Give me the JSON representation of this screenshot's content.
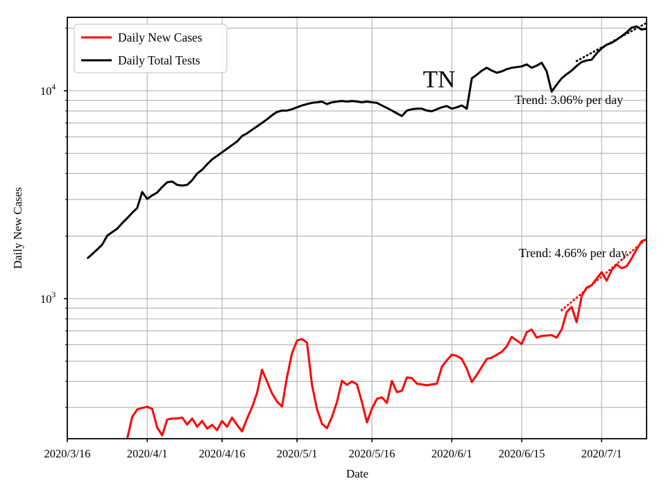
{
  "chart_data": {
    "type": "line",
    "title": "TN",
    "xlabel": "Date",
    "ylabel": "Daily New Cases",
    "x_scale": "date",
    "y_scale": "log",
    "xlim": [
      "2020/3/16",
      "2020/7/10"
    ],
    "ylim": [
      212,
      22560
    ],
    "grid": true,
    "grid_color": "#b0b0b0",
    "y_gridlines": [
      300,
      400,
      500,
      600,
      700,
      800,
      900,
      1000,
      2000,
      3000,
      4000,
      5000,
      6000,
      7000,
      8000,
      9000,
      10000,
      20000
    ],
    "y_major_ticks": [
      {
        "label": "10⁴",
        "base": "10",
        "exp": "4",
        "value": 10000
      },
      {
        "label": "10³",
        "base": "10",
        "exp": "3",
        "value": 1000
      }
    ],
    "x_ticks": [
      {
        "label": "2020/3/16",
        "value": "2020/3/16"
      },
      {
        "label": "2020/4/1",
        "value": "2020/4/1"
      },
      {
        "label": "2020/4/16",
        "value": "2020/4/16"
      },
      {
        "label": "2020/5/1",
        "value": "2020/5/1"
      },
      {
        "label": "2020/5/16",
        "value": "2020/5/16"
      },
      {
        "label": "2020/6/1",
        "value": "2020/6/1"
      },
      {
        "label": "2020/6/15",
        "value": "2020/6/15"
      },
      {
        "label": "2020/7/1",
        "value": "2020/7/1"
      }
    ],
    "legend": {
      "position": "upper left"
    },
    "annotations": [
      {
        "id": "tests-trend-label",
        "text": "Trend: 3.06% per day",
        "color": "#000000"
      },
      {
        "id": "cases-trend-label",
        "text": "Trend: 4.66% per day",
        "color": "#000000"
      }
    ],
    "series": [
      {
        "name": "Daily New Cases",
        "color": "#ff0000",
        "linestyle": "solid",
        "start_date": "2020/3/28",
        "values": [
          212,
          270,
          293,
          298,
          302,
          295,
          240,
          220,
          262,
          265,
          265,
          268,
          248,
          265,
          242,
          258,
          237,
          247,
          233,
          258,
          242,
          268,
          247,
          230,
          265,
          300,
          352,
          455,
          400,
          350,
          320,
          303,
          420,
          546,
          628,
          640,
          615,
          385,
          295,
          250,
          238,
          270,
          318,
          403,
          385,
          400,
          387,
          318,
          254,
          296,
          330,
          335,
          315,
          402,
          355,
          360,
          418,
          415,
          390,
          387,
          383,
          387,
          390,
          470,
          505,
          538,
          530,
          513,
          460,
          397,
          430,
          470,
          513,
          520,
          537,
          555,
          590,
          655,
          630,
          605,
          690,
          710,
          650,
          662,
          665,
          668,
          650,
          710,
          862,
          912,
          770,
          1030,
          1130,
          1160,
          1250,
          1340,
          1220,
          1370,
          1460,
          1400,
          1430,
          1560,
          1725,
          1890,
          1930
        ]
      },
      {
        "name": "Daily Total Tests",
        "color": "#000000",
        "linestyle": "solid",
        "start_date": "2020/3/20",
        "values": [
          1560,
          1640,
          1725,
          1820,
          2010,
          2090,
          2170,
          2310,
          2440,
          2590,
          2730,
          3260,
          3020,
          3140,
          3240,
          3445,
          3630,
          3660,
          3525,
          3500,
          3525,
          3715,
          4000,
          4170,
          4430,
          4680,
          4860,
          5060,
          5265,
          5480,
          5700,
          6060,
          6240,
          6490,
          6740,
          7010,
          7290,
          7625,
          7910,
          8030,
          8030,
          8150,
          8330,
          8500,
          8630,
          8750,
          8800,
          8870,
          8630,
          8800,
          8870,
          8930,
          8870,
          8930,
          8870,
          8800,
          8870,
          8800,
          8750,
          8500,
          8270,
          8030,
          7790,
          7560,
          8030,
          8150,
          8200,
          8200,
          8030,
          7970,
          8150,
          8330,
          8440,
          8200,
          8330,
          8500,
          8200,
          11480,
          11940,
          12500,
          12900,
          12500,
          12220,
          12400,
          12700,
          12900,
          13000,
          13100,
          13400,
          12900,
          13200,
          13640,
          12400,
          9900,
          10700,
          11480,
          12020,
          12500,
          13170,
          13740,
          14000,
          14100,
          15140,
          16000,
          16640,
          17000,
          17600,
          18300,
          19100,
          20100,
          20400,
          19700,
          19900
        ]
      },
      {
        "id": "cases_trend",
        "rate_per_day_pct": 4.66,
        "color": "#ff0000",
        "linestyle": "dotted",
        "points": [
          [
            "2020/6/23",
            880
          ],
          [
            "2020/7/10",
            1940
          ]
        ]
      },
      {
        "id": "tests_trend",
        "rate_per_day_pct": 3.06,
        "color": "#000000",
        "linestyle": "dotted",
        "points": [
          [
            "2020/6/26",
            13900
          ],
          [
            "2020/7/10",
            21200
          ]
        ]
      }
    ]
  }
}
